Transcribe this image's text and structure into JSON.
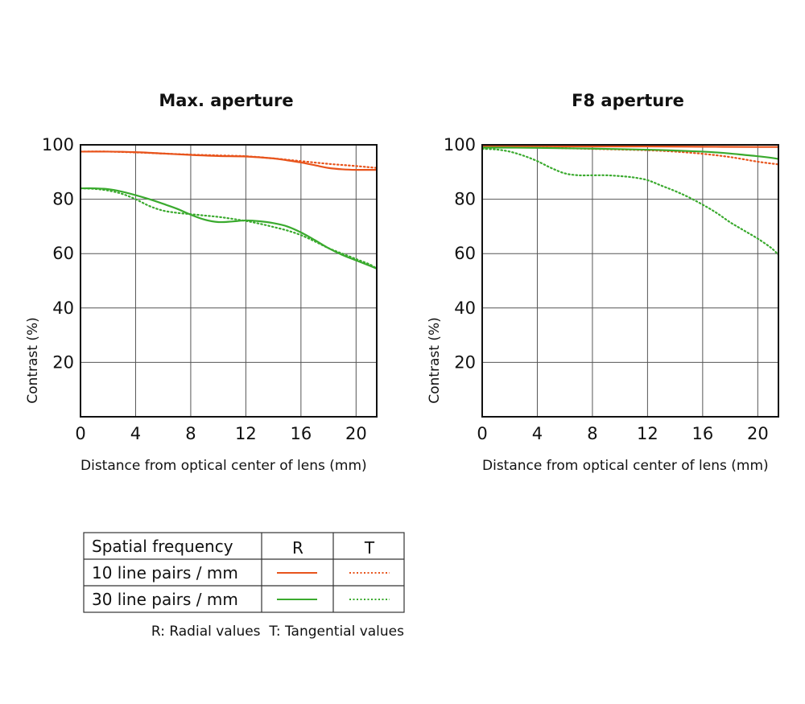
{
  "colors": {
    "lp10": "#e8541c",
    "lp30": "#3aaa2e"
  },
  "chart_data": [
    {
      "type": "line",
      "title": "Max. aperture",
      "xlabel": "Distance from optical center of lens (mm)",
      "ylabel": "Contrast (%)",
      "xlim": [
        0,
        21.5
      ],
      "ylim": [
        0,
        100
      ],
      "xticks": [
        0,
        4,
        8,
        12,
        16,
        20
      ],
      "yticks": [
        20,
        40,
        60,
        80,
        100
      ],
      "grid": true,
      "series": [
        {
          "name": "10 line pairs / mm",
          "type_key": "R",
          "color": "#e8541c",
          "dash": "solid",
          "x": [
            0,
            2,
            4,
            6,
            8,
            10,
            12,
            14,
            15,
            16,
            17,
            18,
            19,
            20,
            21.5
          ],
          "y": [
            97.5,
            97.5,
            97.3,
            96.8,
            96.3,
            95.9,
            95.7,
            95.0,
            94.3,
            93.5,
            92.5,
            91.5,
            91.0,
            90.8,
            90.8
          ]
        },
        {
          "name": "10 line pairs / mm",
          "type_key": "T",
          "color": "#e8541c",
          "dash": "dotted",
          "x": [
            0,
            2,
            4,
            6,
            8,
            10,
            12,
            14,
            16,
            18,
            20,
            21.5
          ],
          "y": [
            97.5,
            97.5,
            97.2,
            96.8,
            96.4,
            96.1,
            95.8,
            95.0,
            94.0,
            93.0,
            92.2,
            91.5
          ]
        },
        {
          "name": "30 line pairs / mm",
          "type_key": "R",
          "color": "#3aaa2e",
          "dash": "solid",
          "x": [
            0,
            1,
            2,
            3,
            4,
            5,
            6,
            7,
            8,
            9,
            10,
            11,
            12,
            13,
            14,
            15,
            16,
            17,
            18,
            19,
            20,
            21,
            21.5
          ],
          "y": [
            84,
            84,
            83.7,
            82.8,
            81.5,
            80.0,
            78.3,
            76.5,
            74.3,
            72.5,
            71.6,
            71.8,
            72.2,
            71.9,
            71.2,
            70.0,
            67.8,
            65.0,
            62.0,
            59.5,
            57.5,
            55.5,
            54.5
          ]
        },
        {
          "name": "30 line pairs / mm",
          "type_key": "T",
          "color": "#3aaa2e",
          "dash": "dotted",
          "x": [
            0,
            1,
            2,
            3,
            4,
            5,
            6,
            7,
            8,
            9,
            10,
            11,
            12,
            13,
            14,
            15,
            16,
            17,
            18,
            19,
            20,
            21,
            21.5
          ],
          "y": [
            84,
            83.8,
            83.2,
            82.0,
            80.0,
            77.5,
            75.8,
            75.0,
            74.5,
            74.0,
            73.5,
            72.8,
            72.0,
            71.0,
            69.8,
            68.5,
            66.8,
            64.5,
            62.0,
            60.0,
            58.0,
            56.0,
            54.5
          ]
        }
      ]
    },
    {
      "type": "line",
      "title": "F8 aperture",
      "xlabel": "Distance from optical center of lens (mm)",
      "ylabel": "Contrast (%)",
      "xlim": [
        0,
        21.5
      ],
      "ylim": [
        0,
        100
      ],
      "xticks": [
        0,
        4,
        8,
        12,
        16,
        20
      ],
      "yticks": [
        20,
        40,
        60,
        80,
        100
      ],
      "grid": true,
      "series": [
        {
          "name": "10 line pairs / mm",
          "type_key": "R",
          "color": "#e8541c",
          "dash": "solid",
          "x": [
            0,
            4,
            8,
            12,
            16,
            20,
            21.5
          ],
          "y": [
            99.5,
            99.5,
            99.4,
            99.4,
            99.3,
            99.2,
            99.2
          ]
        },
        {
          "name": "10 line pairs / mm",
          "type_key": "T",
          "color": "#e8541c",
          "dash": "dotted",
          "x": [
            0,
            4,
            8,
            12,
            14,
            16,
            18,
            20,
            21.5
          ],
          "y": [
            99.3,
            99.0,
            98.5,
            98.0,
            97.5,
            96.7,
            95.5,
            93.8,
            92.8
          ]
        },
        {
          "name": "30 line pairs / mm",
          "type_key": "R",
          "color": "#3aaa2e",
          "dash": "solid",
          "x": [
            0,
            4,
            8,
            12,
            14,
            16,
            17,
            18,
            19,
            20,
            21,
            21.5
          ],
          "y": [
            99.0,
            98.9,
            98.6,
            98.2,
            97.9,
            97.5,
            97.2,
            96.8,
            96.3,
            95.8,
            95.2,
            94.8
          ]
        },
        {
          "name": "30 line pairs / mm",
          "type_key": "T",
          "color": "#3aaa2e",
          "dash": "dotted",
          "x": [
            0,
            1,
            2,
            3,
            4,
            5,
            6,
            7,
            8,
            9,
            10,
            11,
            12,
            13,
            14,
            15,
            16,
            17,
            18,
            19,
            20,
            21,
            21.5
          ],
          "y": [
            98.5,
            98.3,
            97.5,
            96.0,
            94.0,
            91.5,
            89.5,
            88.8,
            88.8,
            88.8,
            88.5,
            88.0,
            87.0,
            85.0,
            83.0,
            80.7,
            78.0,
            75.0,
            71.5,
            68.5,
            65.5,
            62.0,
            59.5
          ]
        }
      ]
    }
  ],
  "legend": {
    "header_label": "Spatial frequency",
    "col_r": "R",
    "col_t": "T",
    "rows": [
      {
        "label": "10 line pairs / mm",
        "color": "#e8541c"
      },
      {
        "label": "30 line pairs / mm",
        "color": "#3aaa2e"
      }
    ],
    "note": "R: Radial values  T: Tangential values"
  }
}
